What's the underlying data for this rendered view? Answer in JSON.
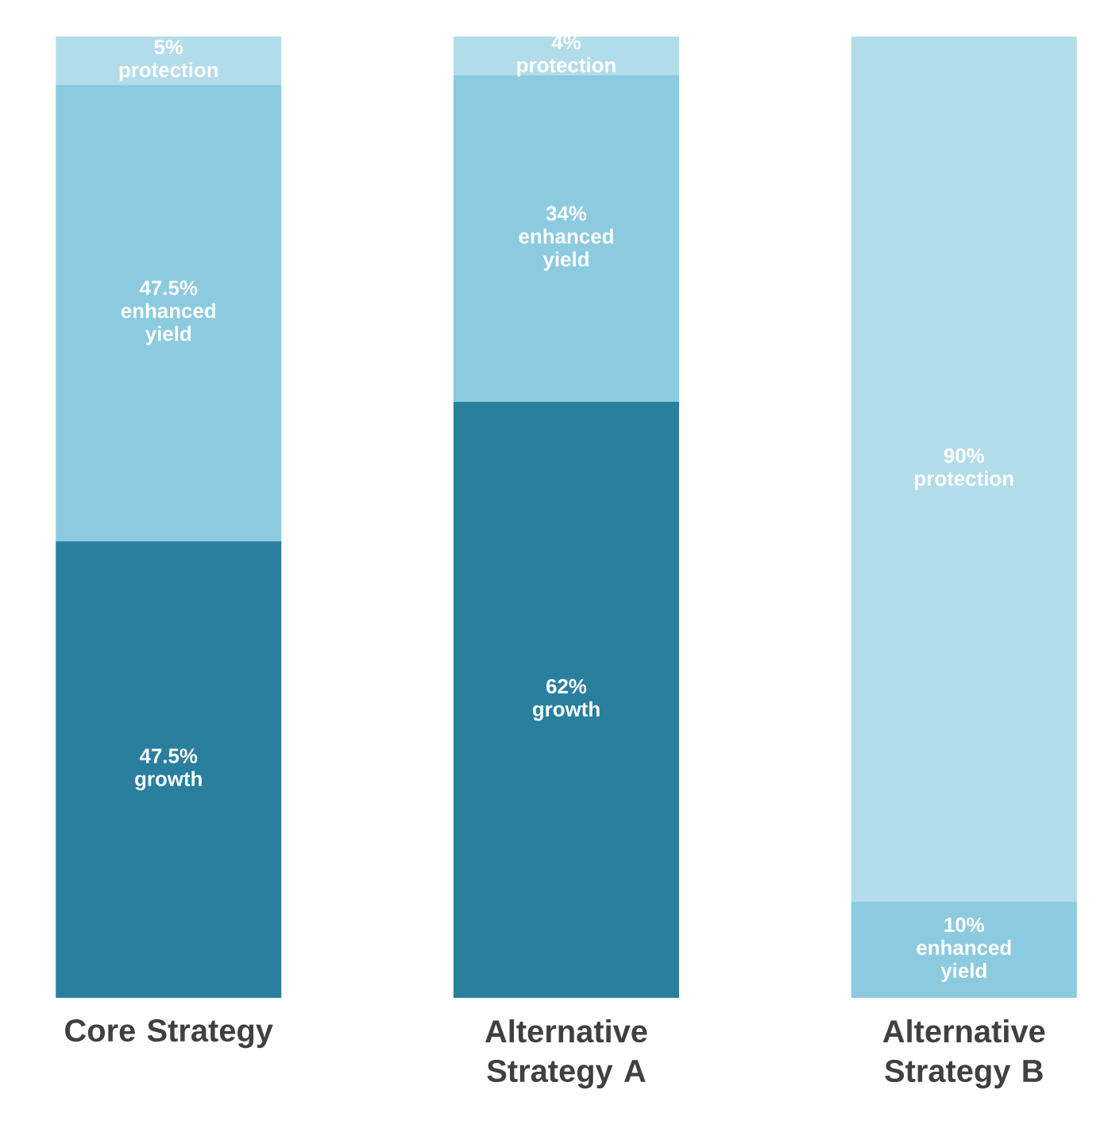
{
  "chart_data": {
    "type": "bar",
    "stacked": true,
    "categories": [
      "Core Strategy",
      "Alternative Strategy A",
      "Alternative Strategy B"
    ],
    "series": [
      {
        "name": "growth",
        "color": "#2a7f9e",
        "values": [
          47.5,
          62,
          0
        ],
        "value_labels": [
          "47.5%",
          "62%",
          null
        ]
      },
      {
        "name": "enhanced yield",
        "color": "#8ccbdf",
        "values": [
          47.5,
          34,
          10
        ],
        "value_labels": [
          "47.5%",
          "34%",
          "10%"
        ]
      },
      {
        "name": "protection",
        "color": "#b3dcea",
        "values": [
          5,
          4,
          90
        ],
        "value_labels": [
          "5%",
          "4%",
          "90%"
        ]
      }
    ]
  }
}
